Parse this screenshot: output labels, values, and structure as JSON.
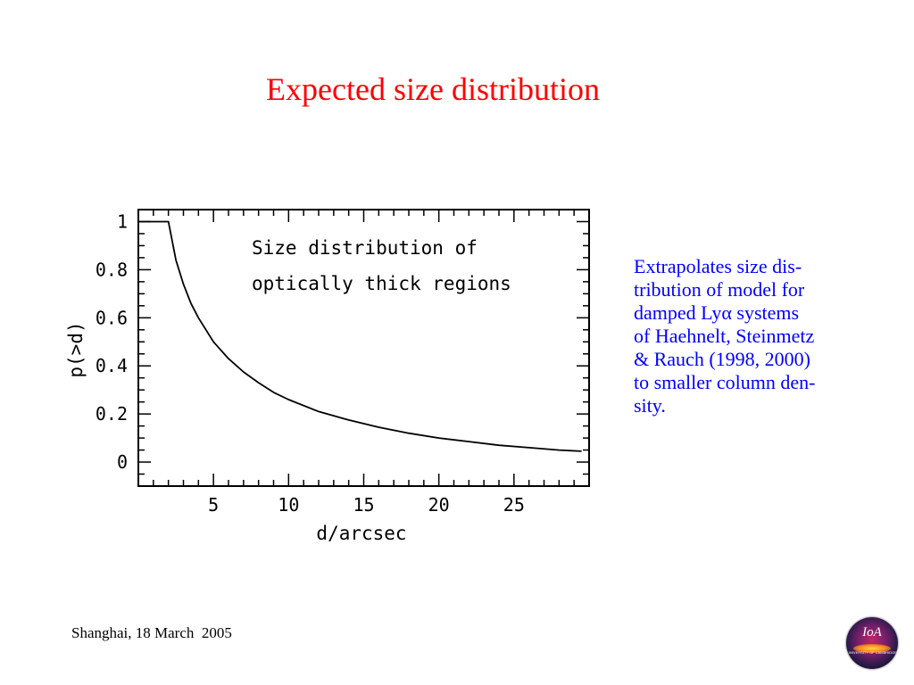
{
  "slide": {
    "title": "Expected size distribution",
    "footer": "Shanghai, 18 March  2005",
    "logo_text": "IoA",
    "logo_subtext": "UNIVERSITY OF CAMBRIDGE"
  },
  "side_text": {
    "lines": [
      "Extrapolates size dis-",
      "tribution of model for",
      "damped Lyα systems",
      "of Haehnelt, Steinmetz",
      "& Rauch (1998, 2000)",
      "to smaller column den-",
      "sity."
    ]
  },
  "chart_data": {
    "type": "line",
    "title": "",
    "annotation": [
      "Size distribution of",
      "optically thick regions"
    ],
    "xlabel": "d/arcsec",
    "ylabel": "p(>d)",
    "xlim": [
      0,
      30
    ],
    "ylim": [
      -0.1,
      1.05
    ],
    "xticks": [
      5,
      10,
      15,
      20,
      25
    ],
    "xtick_labels": [
      "5",
      "10",
      "15",
      "20",
      "25"
    ],
    "yticks": [
      0,
      0.2,
      0.4,
      0.6,
      0.8,
      1
    ],
    "ytick_labels": [
      "0",
      "0.2",
      "0.4",
      "0.6",
      "0.8",
      "1"
    ],
    "grid": false,
    "series": [
      {
        "x": [
          0,
          1.5,
          2,
          2.5,
          3,
          3.5,
          4,
          5,
          6,
          7,
          8,
          9,
          10,
          12,
          14,
          16,
          18,
          20,
          22,
          24,
          26,
          28,
          29.5
        ],
        "y": [
          1,
          1,
          1,
          0.84,
          0.74,
          0.66,
          0.6,
          0.5,
          0.43,
          0.375,
          0.33,
          0.29,
          0.26,
          0.21,
          0.175,
          0.145,
          0.12,
          0.1,
          0.085,
          0.07,
          0.06,
          0.05,
          0.045
        ]
      }
    ]
  }
}
